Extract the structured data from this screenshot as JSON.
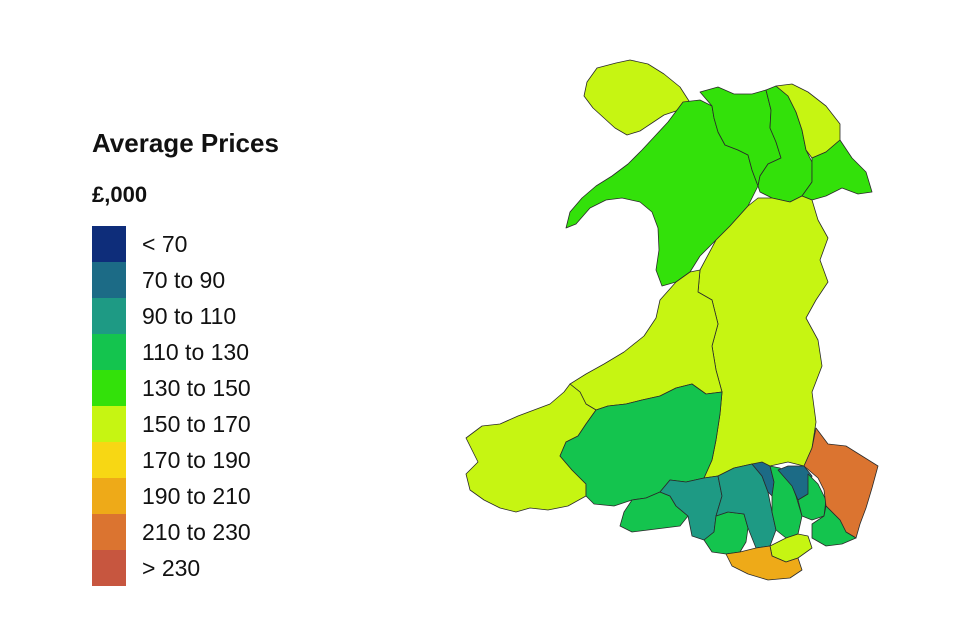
{
  "legend": {
    "title": "Average Prices",
    "unit": "£,000",
    "bands": [
      {
        "label": "< 70",
        "color": "#0e2d7a"
      },
      {
        "label": "70 to 90",
        "color": "#1c6b86"
      },
      {
        "label": "90 to 110",
        "color": "#1e9a84"
      },
      {
        "label": "110 to 130",
        "color": "#14c44e"
      },
      {
        "label": "130 to 150",
        "color": "#33e10a"
      },
      {
        "label": "150 to 170",
        "color": "#c6f512"
      },
      {
        "label": "170 to 190",
        "color": "#f7d714"
      },
      {
        "label": "190 to 210",
        "color": "#eeaa18"
      },
      {
        "label": "210 to 230",
        "color": "#db7430"
      },
      {
        "label": "> 230",
        "color": "#c7563f"
      }
    ]
  },
  "map": {
    "regions": [
      {
        "name": "anglesey",
        "band": 5
      },
      {
        "name": "gwynedd",
        "band": 4
      },
      {
        "name": "conwy",
        "band": 4
      },
      {
        "name": "denbighshire",
        "band": 4
      },
      {
        "name": "flintshire",
        "band": 5
      },
      {
        "name": "wrexham",
        "band": 4
      },
      {
        "name": "powys",
        "band": 5
      },
      {
        "name": "ceredigion",
        "band": 5
      },
      {
        "name": "pembrokeshire",
        "band": 5
      },
      {
        "name": "carmarthenshire",
        "band": 3
      },
      {
        "name": "swansea",
        "band": 3
      },
      {
        "name": "neath-port-talbot",
        "band": 2
      },
      {
        "name": "bridgend",
        "band": 3
      },
      {
        "name": "rhondda-cynon-taf",
        "band": 2
      },
      {
        "name": "merthyr-tydfil",
        "band": 1
      },
      {
        "name": "caerphilly",
        "band": 3
      },
      {
        "name": "blaenau-gwent",
        "band": 1
      },
      {
        "name": "torfaen",
        "band": 3
      },
      {
        "name": "monmouthshire",
        "band": 8
      },
      {
        "name": "newport",
        "band": 3
      },
      {
        "name": "cardiff",
        "band": 5
      },
      {
        "name": "vale-of-glamorgan",
        "band": 7
      }
    ]
  }
}
